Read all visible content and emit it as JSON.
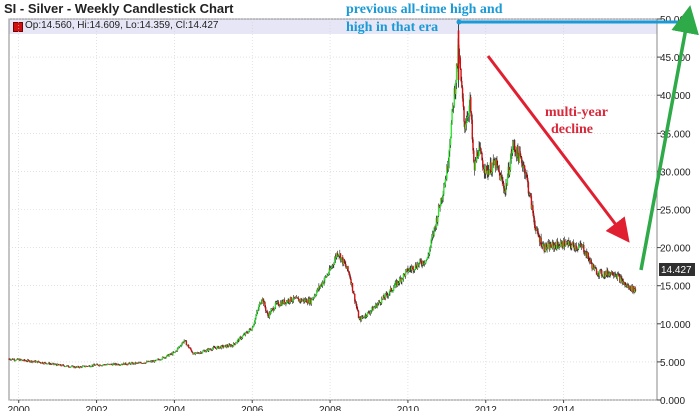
{
  "header": {
    "title": "SI - Silver - Weekly Candlestick Chart",
    "ohlc": "Op:14.560, Hi:14.609, Lo:14.359, Cl:14.427"
  },
  "colors": {
    "up_candle": "#2ee82e",
    "down_candle": "#d01010",
    "wick": "#1a1a1a",
    "grid": "#d0d0d0",
    "ath_line": "#1a9ad6",
    "decline_arrow": "#e02030",
    "rally_arrow": "#2faa48",
    "last_price_bg": "#303030"
  },
  "annotations": {
    "ath_line1": "previous all-time high and",
    "ath_line2": "high in that era",
    "decline_line1": "multi-year",
    "decline_line2": "decline"
  },
  "chart_data": {
    "type": "candlestick",
    "title": "SI - Silver - Weekly Candlestick Chart",
    "x_tick_labels": [
      "2000",
      "2002",
      "2004",
      "2006",
      "2008",
      "2010",
      "2012",
      "2014"
    ],
    "x_range": [
      1999.75,
      2016.4
    ],
    "y_tick_labels": [
      "0.000",
      "5.000",
      "10.000",
      "15.000",
      "20.000",
      "25.000",
      "30.000",
      "35.000",
      "40.000",
      "45.000",
      "50.000"
    ],
    "ylim": [
      0,
      50
    ],
    "grid": true,
    "last_price": "14.427",
    "previous_high": 49.5,
    "series": {
      "x": [
        1999.75,
        2000.5,
        2001.0,
        2001.5,
        2002.0,
        2002.5,
        2003.0,
        2003.5,
        2004.0,
        2004.25,
        2004.5,
        2005.0,
        2005.5,
        2006.0,
        2006.25,
        2006.4,
        2006.6,
        2007.0,
        2007.5,
        2008.0,
        2008.2,
        2008.5,
        2008.75,
        2009.0,
        2009.5,
        2010.0,
        2010.5,
        2010.75,
        2011.0,
        2011.3,
        2011.45,
        2011.6,
        2011.7,
        2011.8,
        2012.0,
        2012.25,
        2012.5,
        2012.7,
        2013.0,
        2013.3,
        2013.5,
        2014.0,
        2014.5,
        2014.8,
        2015.0,
        2015.3,
        2015.6,
        2015.85
      ],
      "close": [
        5.4,
        5.0,
        4.6,
        4.3,
        4.6,
        4.7,
        4.8,
        5.1,
        6.2,
        7.8,
        6.0,
        6.8,
        7.2,
        9.5,
        13.5,
        11.0,
        12.5,
        13.2,
        13.0,
        17.0,
        19.5,
        16.5,
        10.5,
        11.5,
        14.0,
        17.0,
        18.5,
        24.0,
        30.0,
        46.0,
        36.0,
        39.0,
        30.0,
        33.0,
        30.0,
        31.0,
        27.5,
        33.5,
        30.5,
        22.0,
        20.0,
        20.5,
        20.0,
        17.0,
        16.5,
        16.8,
        15.0,
        14.4
      ]
    }
  }
}
